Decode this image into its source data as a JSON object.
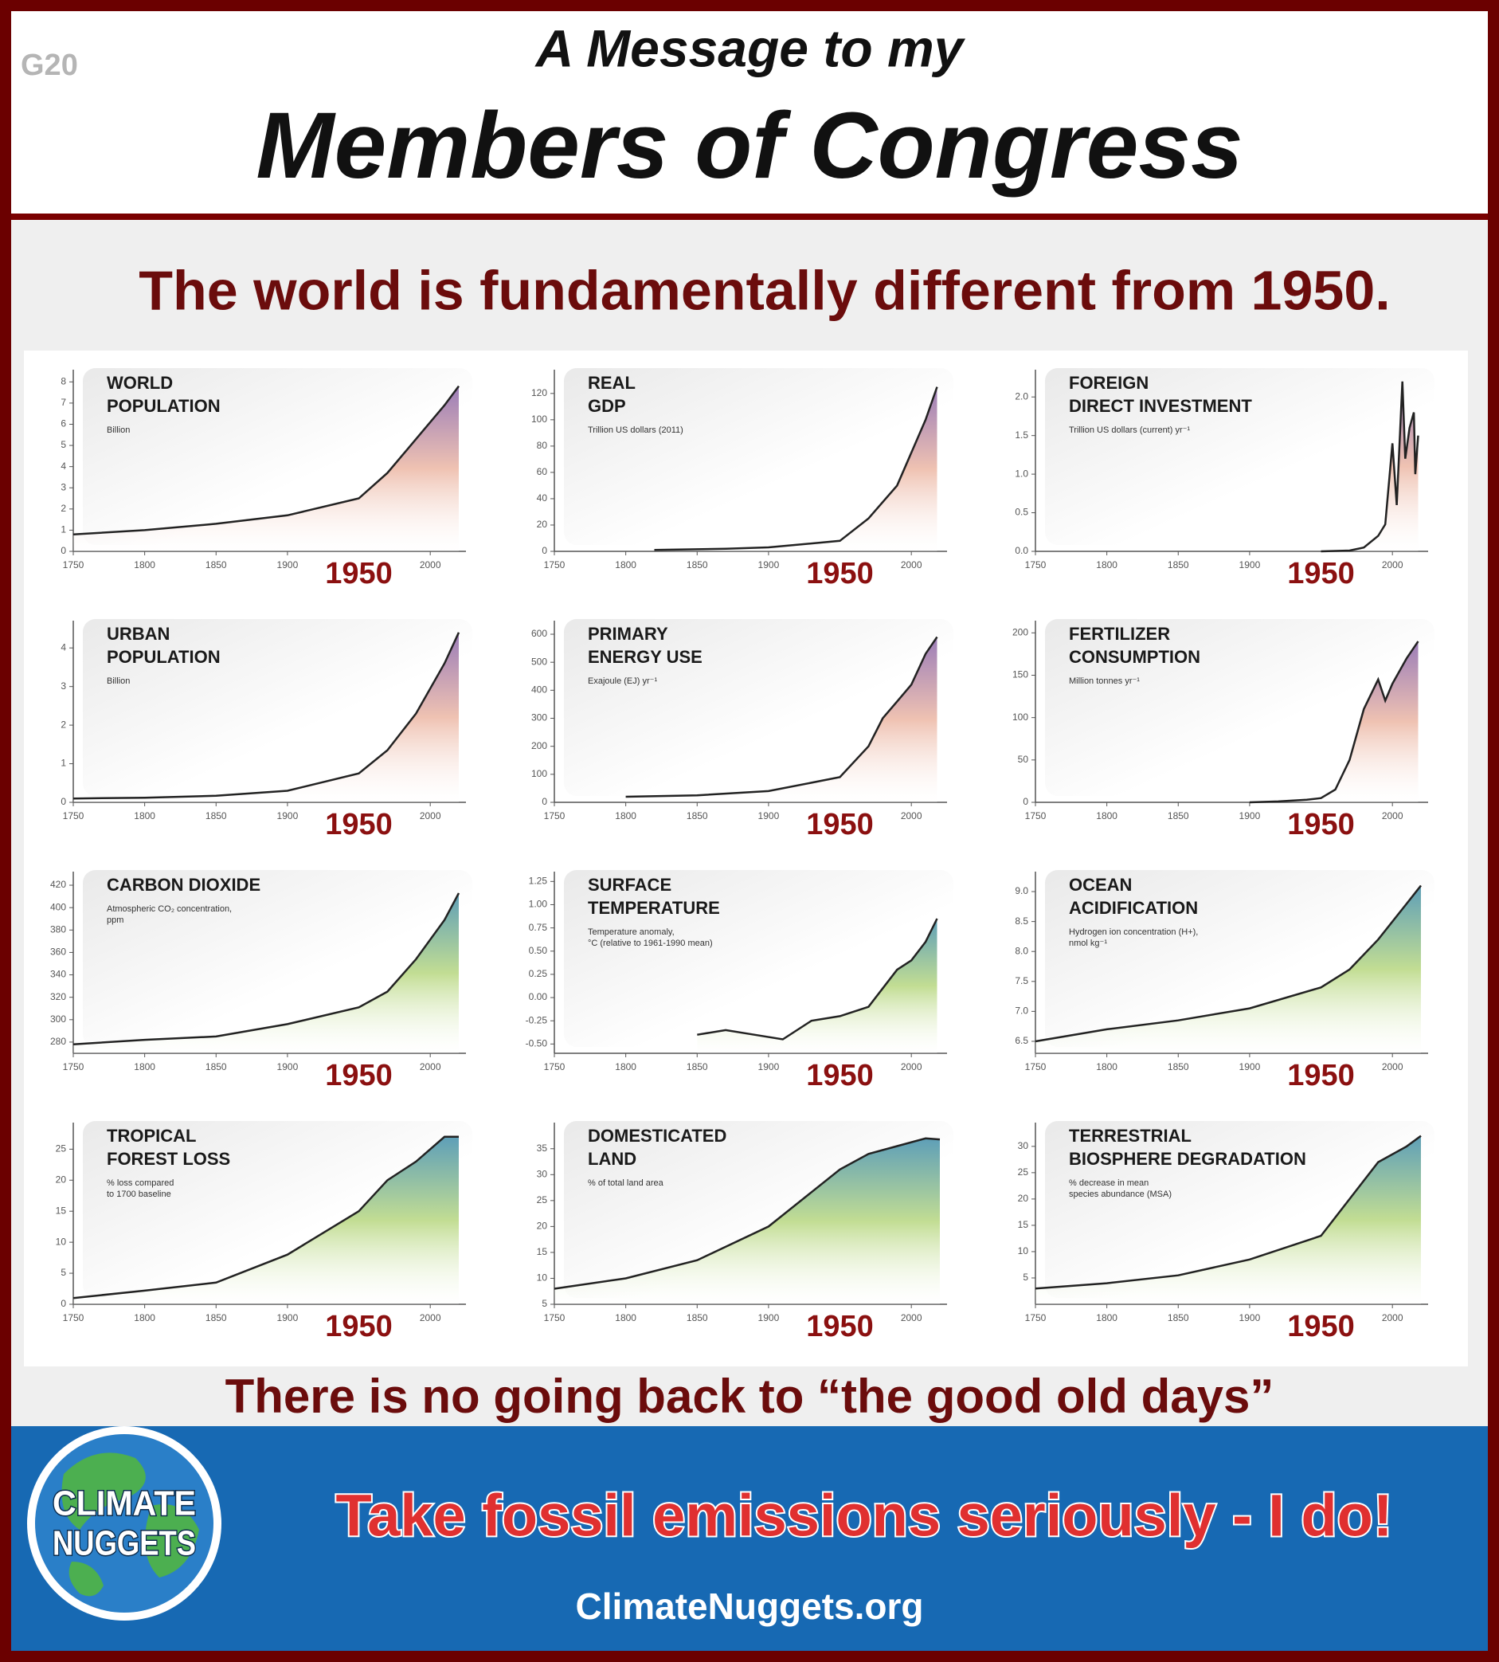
{
  "badge": "G20",
  "header": {
    "line1": "A Message to my",
    "line2": "Members of Congress"
  },
  "headline": "The world is fundamentally different from 1950.",
  "footer_line": "There is no going back to “the good old days”",
  "logo": [
    "CLIMATE",
    "NUGGETS"
  ],
  "slogan": "Take fossil emissions seriously - I do!",
  "url": "ClimateNuggets.org",
  "chart_data": [
    {
      "type": "area",
      "title": [
        "WORLD",
        "POPULATION"
      ],
      "subtitle": [
        "Billion"
      ],
      "x": [
        1750,
        1800,
        1850,
        1900,
        1950,
        1970,
        1990,
        2010,
        2020
      ],
      "values": [
        0.8,
        1.0,
        1.3,
        1.7,
        2.5,
        3.7,
        5.3,
        6.9,
        7.8
      ],
      "xlim": [
        1750,
        2025
      ],
      "xticks": [
        1750,
        1800,
        1850,
        1900,
        2000
      ],
      "ylim": [
        0,
        8.2
      ],
      "yticks": [
        0,
        1,
        2,
        3,
        4,
        5,
        6,
        7,
        8
      ],
      "highlight_year": 1950,
      "color": "#222222",
      "fill": [
        "#9b7db8",
        "#efc2b2"
      ]
    },
    {
      "type": "area",
      "title": [
        "REAL",
        "GDP"
      ],
      "subtitle": [
        "Trillion US dollars (2011)"
      ],
      "x": [
        1820,
        1870,
        1900,
        1950,
        1970,
        1990,
        2010,
        2018
      ],
      "values": [
        1,
        2,
        3,
        8,
        25,
        50,
        100,
        125
      ],
      "xlim": [
        1750,
        2025
      ],
      "xticks": [
        1750,
        1800,
        1850,
        1900,
        2000
      ],
      "ylim": [
        0,
        132
      ],
      "yticks": [
        0,
        20,
        40,
        60,
        80,
        100,
        120
      ],
      "highlight_year": 1950,
      "color": "#222222",
      "fill": [
        "#9b7db8",
        "#efc2b2"
      ]
    },
    {
      "type": "area",
      "title": [
        "FOREIGN",
        "DIRECT INVESTMENT"
      ],
      "subtitle": [
        "Trillion US dollars (current) yr⁻¹"
      ],
      "x": [
        1950,
        1970,
        1980,
        1990,
        1995,
        2000,
        2003,
        2007,
        2009,
        2012,
        2015,
        2016,
        2018
      ],
      "values": [
        0,
        0.01,
        0.05,
        0.2,
        0.35,
        1.4,
        0.6,
        2.2,
        1.2,
        1.6,
        1.8,
        1.0,
        1.5
      ],
      "xlim": [
        1750,
        2025
      ],
      "xticks": [
        1750,
        1800,
        1850,
        1900,
        2000
      ],
      "ylim": [
        0,
        2.25
      ],
      "yticks": [
        {
          "value": 0,
          "label": "0.0"
        },
        {
          "value": 0.5,
          "label": "0.5"
        },
        {
          "value": 1,
          "label": "1.0"
        },
        1.5,
        {
          "value": 2,
          "label": "2.0"
        }
      ],
      "highlight_year": 1950,
      "color": "#222222",
      "fill": [
        "#9b7db8",
        "#efc2b2"
      ]
    },
    {
      "type": "area",
      "title": [
        "URBAN",
        "POPULATION"
      ],
      "subtitle": [
        "Billion"
      ],
      "x": [
        1750,
        1800,
        1850,
        1900,
        1950,
        1970,
        1990,
        2010,
        2020
      ],
      "values": [
        0.1,
        0.12,
        0.17,
        0.3,
        0.75,
        1.35,
        2.3,
        3.6,
        4.4
      ],
      "xlim": [
        1750,
        2025
      ],
      "xticks": [
        1750,
        1800,
        1850,
        1900,
        2000
      ],
      "ylim": [
        0,
        4.5
      ],
      "yticks": [
        0,
        1,
        2,
        3,
        4
      ],
      "highlight_year": 1950,
      "color": "#222222",
      "fill": [
        "#9b7db8",
        "#efc2b2"
      ]
    },
    {
      "type": "area",
      "title": [
        "PRIMARY",
        "ENERGY USE"
      ],
      "subtitle": [
        "Exajoule (EJ) yr⁻¹"
      ],
      "x": [
        1800,
        1850,
        1900,
        1950,
        1970,
        1980,
        1990,
        2000,
        2010,
        2018
      ],
      "values": [
        20,
        25,
        40,
        90,
        200,
        300,
        360,
        420,
        530,
        590
      ],
      "xlim": [
        1750,
        2025
      ],
      "xticks": [
        1750,
        1800,
        1850,
        1900,
        2000
      ],
      "ylim": [
        0,
        620
      ],
      "yticks": [
        0,
        100,
        200,
        300,
        400,
        500,
        600
      ],
      "highlight_year": 1950,
      "color": "#222222",
      "fill": [
        "#9b7db8",
        "#efc2b2"
      ]
    },
    {
      "type": "area",
      "title": [
        "FERTILIZER",
        "CONSUMPTION"
      ],
      "subtitle": [
        "Million tonnes yr⁻¹"
      ],
      "x": [
        1900,
        1920,
        1940,
        1950,
        1960,
        1970,
        1980,
        1990,
        1995,
        2000,
        2010,
        2018
      ],
      "values": [
        0,
        1,
        3,
        5,
        15,
        50,
        110,
        145,
        120,
        140,
        170,
        190
      ],
      "xlim": [
        1750,
        2025
      ],
      "xticks": [
        1750,
        1800,
        1850,
        1900,
        2000
      ],
      "ylim": [
        0,
        205
      ],
      "yticks": [
        0,
        50,
        100,
        150,
        200
      ],
      "highlight_year": 1950,
      "color": "#222222",
      "fill": [
        "#9b7db8",
        "#efc2b2"
      ]
    },
    {
      "type": "area",
      "title": [
        "CARBON DIOXIDE"
      ],
      "subtitle": [
        "Atmospheric CO₂ concentration,",
        "ppm"
      ],
      "x": [
        1750,
        1800,
        1850,
        1900,
        1950,
        1970,
        1990,
        2010,
        2020
      ],
      "values": [
        278,
        282,
        285,
        296,
        311,
        325,
        354,
        389,
        413
      ],
      "xlim": [
        1750,
        2025
      ],
      "xticks": [
        1750,
        1800,
        1850,
        1900,
        2000
      ],
      "ylim": [
        270,
        425
      ],
      "yticks": [
        280,
        300,
        320,
        340,
        360,
        380,
        400,
        420
      ],
      "highlight_year": 1950,
      "color": "#222222",
      "fill": [
        "#5e9fb8",
        "#c2dd93"
      ]
    },
    {
      "type": "area",
      "title": [
        "SURFACE",
        "TEMPERATURE"
      ],
      "subtitle": [
        "Temperature anomaly,",
        "°C (relative to 1961-1990 mean)"
      ],
      "x": [
        1850,
        1870,
        1890,
        1910,
        1930,
        1950,
        1970,
        1990,
        2000,
        2010,
        2018
      ],
      "values": [
        -0.4,
        -0.35,
        -0.4,
        -0.45,
        -0.25,
        -0.2,
        -0.1,
        0.3,
        0.4,
        0.6,
        0.85
      ],
      "xlim": [
        1750,
        2025
      ],
      "xticks": [
        1750,
        1800,
        1850,
        1900,
        2000
      ],
      "ylim": [
        -0.6,
        1.27
      ],
      "yticks": [
        {
          "value": -0.5,
          "label": "-0.50"
        },
        {
          "value": -0.25,
          "label": "-0.25"
        },
        {
          "value": 0,
          "label": "0.00"
        },
        0.25,
        {
          "value": 0.5,
          "label": "0.50"
        },
        0.75,
        {
          "value": 1,
          "label": "1.00"
        },
        1.25
      ],
      "highlight_year": 1950,
      "color": "#222222",
      "fill": [
        "#5e9fb8",
        "#c2dd93"
      ]
    },
    {
      "type": "area",
      "title": [
        "OCEAN",
        "ACIDIFICATION"
      ],
      "subtitle": [
        "Hydrogen ion concentration (H+),",
        "nmol kg⁻¹"
      ],
      "x": [
        1750,
        1800,
        1850,
        1900,
        1950,
        1970,
        1990,
        2010,
        2020
      ],
      "values": [
        6.5,
        6.7,
        6.85,
        7.05,
        7.4,
        7.7,
        8.2,
        8.8,
        9.1
      ],
      "xlim": [
        1750,
        2025
      ],
      "xticks": [
        1750,
        1800,
        1850,
        1900,
        2000
      ],
      "ylim": [
        6.3,
        9.2
      ],
      "yticks": [
        6.5,
        {
          "value": 7,
          "label": "7.0"
        },
        7.5,
        {
          "value": 8,
          "label": "8.0"
        },
        8.5,
        {
          "value": 9,
          "label": "9.0"
        }
      ],
      "highlight_year": 1950,
      "color": "#222222",
      "fill": [
        "#5e9fb8",
        "#c2dd93"
      ]
    },
    {
      "type": "area",
      "title": [
        "TROPICAL",
        "FOREST LOSS"
      ],
      "subtitle": [
        "% loss compared",
        "to 1700 baseline"
      ],
      "x": [
        1750,
        1800,
        1850,
        1900,
        1950,
        1970,
        1990,
        2010,
        2020
      ],
      "values": [
        1,
        2.2,
        3.5,
        8,
        15,
        20,
        23,
        27,
        27
      ],
      "xlim": [
        1750,
        2025
      ],
      "xticks": [
        1750,
        1800,
        1850,
        1900,
        2000
      ],
      "ylim": [
        0,
        28
      ],
      "yticks": [
        0,
        5,
        10,
        15,
        20,
        25
      ],
      "highlight_year": 1950,
      "color": "#222222",
      "fill": [
        "#5e9fb8",
        "#c2dd93"
      ]
    },
    {
      "type": "area",
      "title": [
        "DOMESTICATED",
        "LAND"
      ],
      "subtitle": [
        "% of total land area"
      ],
      "x": [
        1750,
        1800,
        1850,
        1900,
        1950,
        1970,
        1990,
        2010,
        2020
      ],
      "values": [
        8,
        10,
        13.5,
        20,
        31,
        34,
        35.5,
        37,
        36.8
      ],
      "xlim": [
        1750,
        2025
      ],
      "xticks": [
        1750,
        1800,
        1850,
        1900,
        2000
      ],
      "ylim": [
        5,
        38.5
      ],
      "yticks": [
        5,
        10,
        15,
        20,
        25,
        30,
        35
      ],
      "highlight_year": 1950,
      "color": "#222222",
      "fill": [
        "#5e9fb8",
        "#c2dd93"
      ]
    },
    {
      "type": "area",
      "title": [
        "TERRESTRIAL",
        "BIOSPHERE DEGRADATION"
      ],
      "subtitle": [
        "% decrease in mean",
        "species abundance (MSA)"
      ],
      "x": [
        1750,
        1800,
        1850,
        1900,
        1950,
        1970,
        1990,
        2010,
        2020
      ],
      "values": [
        3,
        4,
        5.5,
        8.5,
        13,
        20,
        27,
        30,
        32
      ],
      "xlim": [
        1750,
        2025
      ],
      "xticks": [
        1750,
        1800,
        1850,
        1900,
        2000
      ],
      "ylim": [
        0,
        33
      ],
      "yticks": [
        5,
        10,
        15,
        20,
        25,
        30
      ],
      "highlight_year": 1950,
      "color": "#222222",
      "fill": [
        "#5e9fb8",
        "#c2dd93"
      ]
    }
  ]
}
